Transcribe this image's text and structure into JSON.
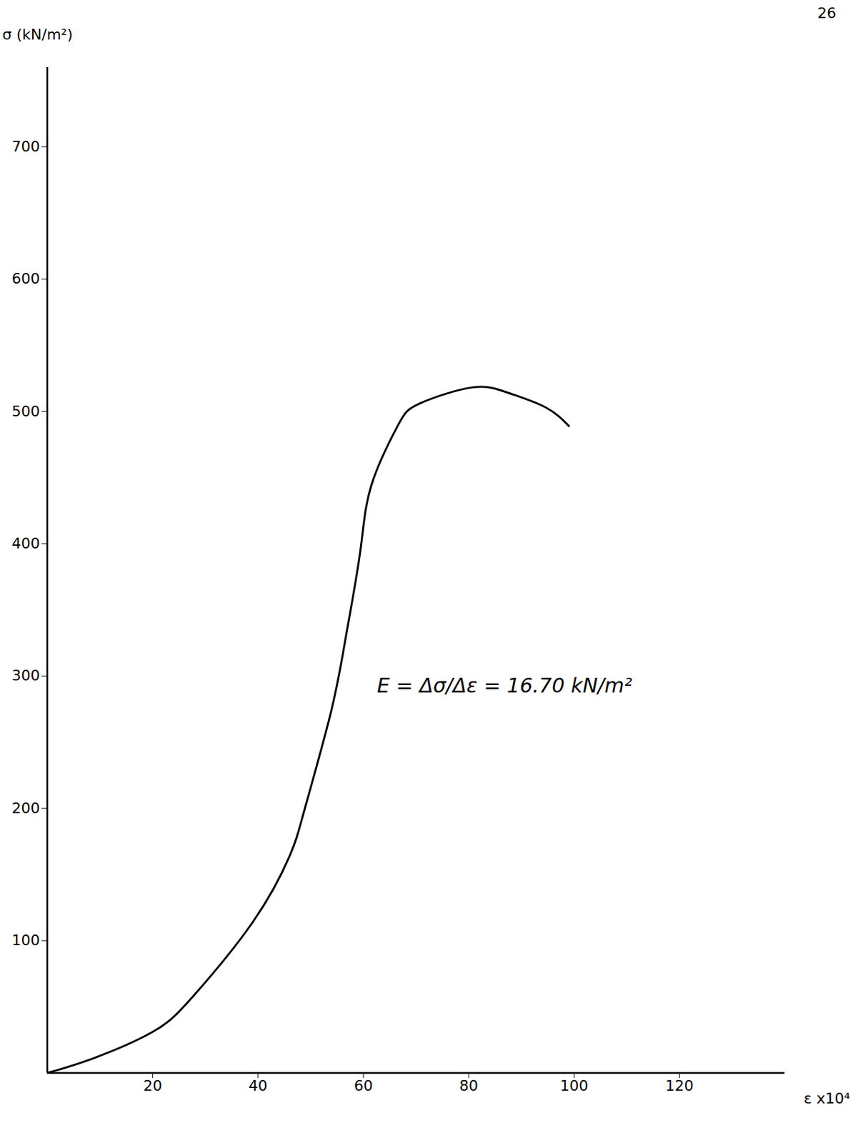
{
  "chart_data": {
    "type": "line",
    "page_label": "26",
    "y_label": "σ (kN/m²)",
    "x_label": "ε x10⁴",
    "annotation": "E = Δσ/Δε = 16.70 kN/m²",
    "x": [
      0,
      8.7,
      20,
      27.7,
      39,
      46,
      48.9,
      53.8,
      56.6,
      59.4,
      61.5,
      66.5,
      70.7,
      80.5,
      87.5,
      94.6,
      99
    ],
    "values": [
      0,
      11,
      31,
      58,
      114,
      164,
      200,
      272,
      328,
      394,
      444,
      489,
      506,
      518,
      514,
      503,
      489
    ],
    "color": "#000000",
    "xlim": [
      0,
      140
    ],
    "xticks": [
      20,
      40,
      60,
      80,
      100,
      120
    ],
    "ylim": [
      0,
      760
    ],
    "yticks": [
      100,
      200,
      300,
      400,
      500,
      600,
      700
    ],
    "grid": false
  }
}
